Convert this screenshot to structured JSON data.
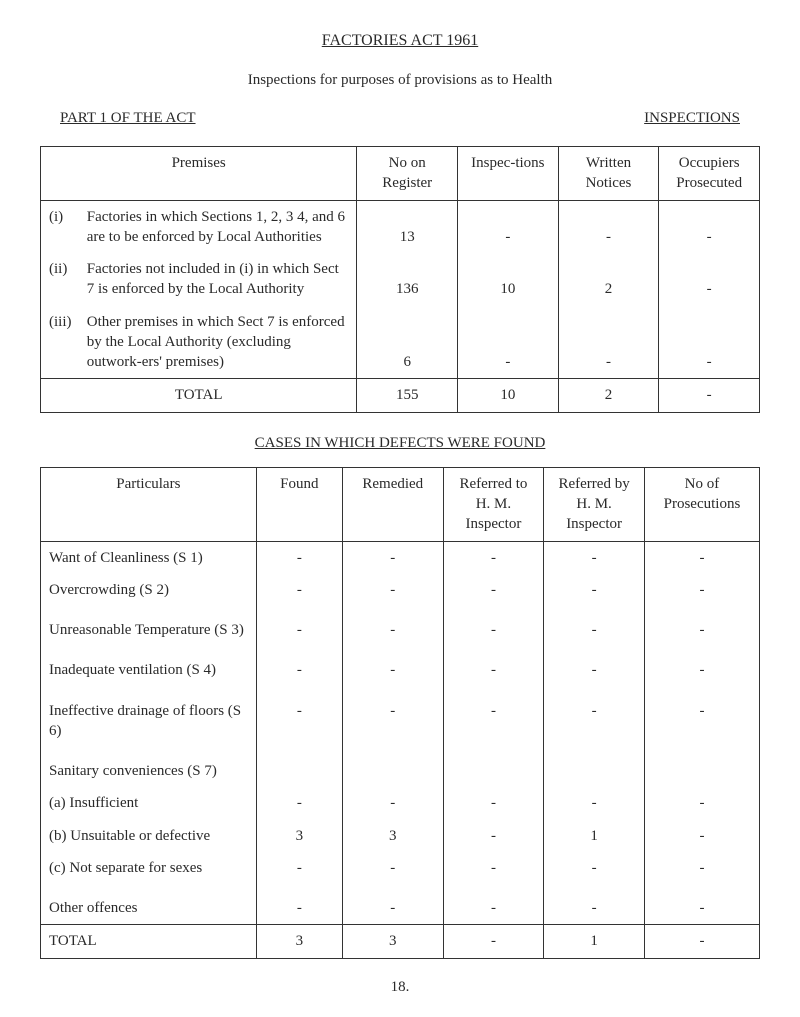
{
  "header": {
    "act_title": "FACTORIES ACT 1961",
    "purpose": "Inspections for purposes of provisions as to Health",
    "part_label": "PART 1 OF THE ACT",
    "inspections_label": "INSPECTIONS"
  },
  "table1": {
    "cols": {
      "premises": "Premises",
      "no_on_register": "No on Register",
      "inspections": "Inspec-tions",
      "written_notices": "Written Notices",
      "occupiers_prosecuted": "Occupiers Prosecuted"
    },
    "rows": [
      {
        "roman": "(i)",
        "desc": "Factories in which Sections 1, 2, 3 4, and 6 are to be enforced by Local Authorities",
        "no_on_register": "13",
        "inspections": "-",
        "written_notices": "-",
        "occupiers_prosecuted": "-"
      },
      {
        "roman": "(ii)",
        "desc": "Factories not included in (i) in which Sect 7 is enforced by the Local Authority",
        "no_on_register": "136",
        "inspections": "10",
        "written_notices": "2",
        "occupiers_prosecuted": "-"
      },
      {
        "roman": "(iii)",
        "desc": "Other premises in which Sect 7 is enforced by the Local Authority (excluding outwork-ers' premises)",
        "no_on_register": "6",
        "inspections": "-",
        "written_notices": "-",
        "occupiers_prosecuted": "-"
      }
    ],
    "total": {
      "label": "TOTAL",
      "no_on_register": "155",
      "inspections": "10",
      "written_notices": "2",
      "occupiers_prosecuted": "-"
    }
  },
  "defects_title": "CASES IN WHICH DEFECTS WERE FOUND",
  "table2": {
    "cols": {
      "particulars": "Particulars",
      "found": "Found",
      "remedied": "Remedied",
      "ref_hm": "Referred to H. M. Inspector",
      "ref_by_hm": "Referred by H. M. Inspector",
      "prosecutions": "No of Prosecutions"
    },
    "rows": [
      {
        "p": "Want of Cleanliness (S 1)",
        "v": [
          "-",
          "-",
          "-",
          "-",
          "-"
        ]
      },
      {
        "p": "Overcrowding (S 2)",
        "v": [
          "-",
          "-",
          "-",
          "-",
          "-"
        ]
      },
      {
        "p": "Unreasonable Temperature (S 3)",
        "v": [
          "-",
          "-",
          "-",
          "-",
          "-"
        ],
        "gap_before": true
      },
      {
        "p": "Inadequate ventilation (S 4)",
        "v": [
          "-",
          "-",
          "-",
          "-",
          "-"
        ],
        "gap_before": true
      },
      {
        "p": "Ineffective drainage of floors (S 6)",
        "v": [
          "-",
          "-",
          "-",
          "-",
          "-"
        ],
        "gap_before": true
      },
      {
        "p": "Sanitary conveniences (S 7)",
        "header_only": true,
        "gap_before": true
      },
      {
        "p": "(a) Insufficient",
        "v": [
          "-",
          "-",
          "-",
          "-",
          "-"
        ]
      },
      {
        "p": "(b) Unsuitable or defective",
        "v": [
          "3",
          "3",
          "-",
          "1",
          "-"
        ]
      },
      {
        "p": "(c) Not separate for sexes",
        "v": [
          "-",
          "-",
          "-",
          "-",
          "-"
        ]
      },
      {
        "p": "Other offences",
        "v": [
          "-",
          "-",
          "-",
          "-",
          "-"
        ],
        "gap_before": true
      }
    ],
    "total": {
      "label": "TOTAL",
      "v": [
        "3",
        "3",
        "-",
        "1",
        "-"
      ]
    }
  },
  "page_number": "18."
}
